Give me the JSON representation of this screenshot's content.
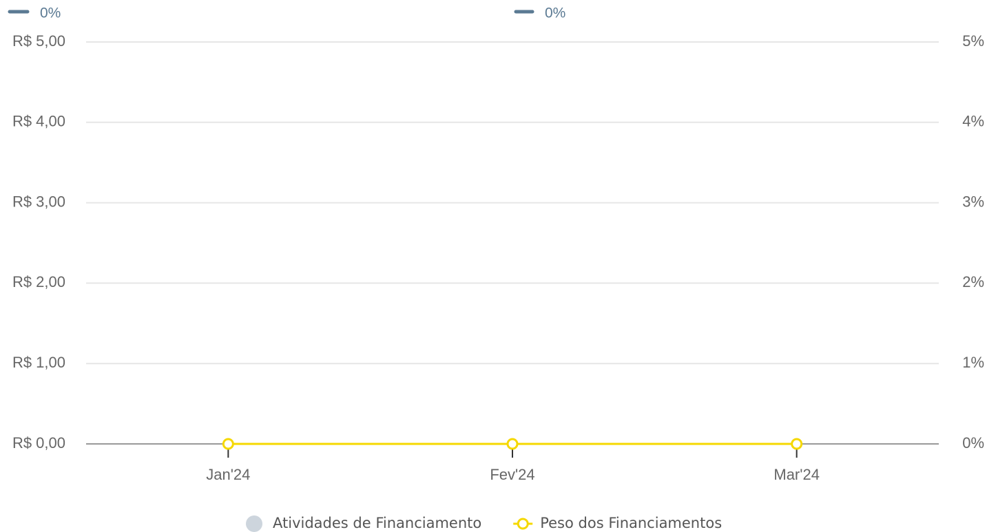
{
  "chart_data": {
    "type": "bar_line",
    "annotations": [
      "0%",
      "0%"
    ],
    "categories": [
      "Jan'24",
      "Fev'24",
      "Mar'24"
    ],
    "series": [
      {
        "name": "Atividades de Financiamento",
        "type": "bar",
        "color": "#cdd5dd",
        "values": [
          0,
          0,
          0
        ]
      },
      {
        "name": "Peso dos Financiamentos",
        "type": "line",
        "color": "#f5d800",
        "axis": "y2",
        "values": [
          0,
          0,
          0
        ]
      }
    ],
    "ylim": [
      0,
      5
    ],
    "yticks": [
      {
        "value": 0,
        "label": "R$ 0,00"
      },
      {
        "value": 1,
        "label": "R$ 1,00"
      },
      {
        "value": 2,
        "label": "R$ 2,00"
      },
      {
        "value": 3,
        "label": "R$ 3,00"
      },
      {
        "value": 4,
        "label": "R$ 4,00"
      },
      {
        "value": 5,
        "label": "R$ 5,00"
      }
    ],
    "y2lim": [
      0,
      5
    ],
    "y2ticks": [
      {
        "value": 0,
        "label": "0%"
      },
      {
        "value": 1,
        "label": "1%"
      },
      {
        "value": 2,
        "label": "2%"
      },
      {
        "value": 3,
        "label": "3%"
      },
      {
        "value": 4,
        "label": "4%"
      },
      {
        "value": 5,
        "label": "5%"
      }
    ],
    "grid": true,
    "legend": "bottom"
  }
}
